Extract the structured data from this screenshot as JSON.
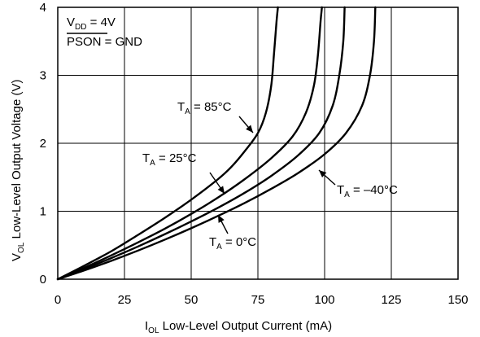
{
  "chart_data": {
    "type": "line",
    "title": "",
    "xlabel": {
      "main": "I",
      "sub": "OL",
      "rest": " Low-Level Output Current (mA)"
    },
    "ylabel": {
      "main": "V",
      "sub": "OL",
      "rest": " Low-Level Output Voltage (V)"
    },
    "xlim": [
      0,
      150
    ],
    "ylim": [
      0,
      4
    ],
    "xticks": [
      "0",
      "25",
      "50",
      "75",
      "100",
      "125",
      "150"
    ],
    "yticks": [
      "0",
      "1",
      "2",
      "3",
      "4"
    ],
    "grid": true,
    "conditions": [
      {
        "main": "V",
        "sub": "DD",
        "rest": " = 4V",
        "overline": false
      },
      {
        "main": "PSON",
        "sub": "",
        "rest": " = GND",
        "overline": true
      }
    ],
    "series": [
      {
        "label": {
          "main": "T",
          "sub": "A",
          "rest": " = 85°C"
        },
        "points": [
          [
            0,
            0
          ],
          [
            10,
            0.2
          ],
          [
            20,
            0.41
          ],
          [
            30,
            0.65
          ],
          [
            40,
            0.9
          ],
          [
            50,
            1.17
          ],
          [
            60,
            1.47
          ],
          [
            65,
            1.65
          ],
          [
            70,
            1.88
          ],
          [
            75,
            2.15
          ],
          [
            78,
            2.45
          ],
          [
            80,
            2.85
          ],
          [
            81,
            3.3
          ],
          [
            82,
            3.8
          ],
          [
            82.5,
            4
          ]
        ]
      },
      {
        "label": {
          "main": "T",
          "sub": "A",
          "rest": " = 25°C"
        },
        "points": [
          [
            0,
            0
          ],
          [
            10,
            0.17
          ],
          [
            20,
            0.35
          ],
          [
            30,
            0.54
          ],
          [
            40,
            0.74
          ],
          [
            50,
            0.96
          ],
          [
            60,
            1.2
          ],
          [
            70,
            1.47
          ],
          [
            80,
            1.78
          ],
          [
            88,
            2.1
          ],
          [
            93,
            2.45
          ],
          [
            96,
            2.85
          ],
          [
            97.5,
            3.3
          ],
          [
            98.5,
            3.8
          ],
          [
            99,
            4
          ]
        ]
      },
      {
        "label": {
          "main": "T",
          "sub": "A",
          "rest": " = 0°C"
        },
        "points": [
          [
            0,
            0
          ],
          [
            10,
            0.15
          ],
          [
            20,
            0.31
          ],
          [
            30,
            0.48
          ],
          [
            40,
            0.66
          ],
          [
            50,
            0.85
          ],
          [
            60,
            1.05
          ],
          [
            70,
            1.27
          ],
          [
            80,
            1.52
          ],
          [
            90,
            1.82
          ],
          [
            98,
            2.15
          ],
          [
            103,
            2.55
          ],
          [
            105.5,
            3
          ],
          [
            107,
            3.5
          ],
          [
            107.5,
            4
          ]
        ]
      },
      {
        "label": {
          "main": "T",
          "sub": "A",
          "rest": " = –40°C"
        },
        "points": [
          [
            0,
            0
          ],
          [
            10,
            0.13
          ],
          [
            20,
            0.27
          ],
          [
            30,
            0.42
          ],
          [
            40,
            0.58
          ],
          [
            50,
            0.75
          ],
          [
            60,
            0.93
          ],
          [
            70,
            1.12
          ],
          [
            80,
            1.33
          ],
          [
            90,
            1.56
          ],
          [
            100,
            1.84
          ],
          [
            108,
            2.15
          ],
          [
            114,
            2.55
          ],
          [
            117,
            3
          ],
          [
            118.5,
            3.5
          ],
          [
            119,
            4
          ]
        ]
      }
    ]
  }
}
